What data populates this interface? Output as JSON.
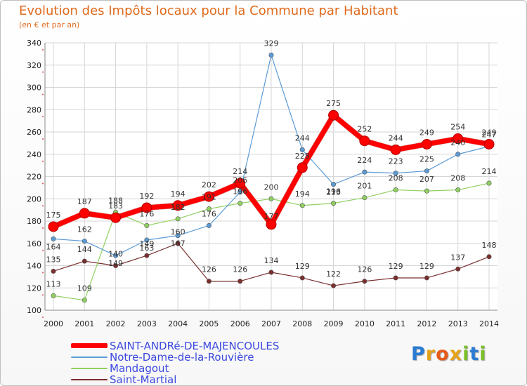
{
  "title": "Evolution des Impôts locaux pour la Commune par Habitant",
  "subtitle": "(en € et par an)",
  "logo": {
    "letters": [
      "P",
      "r",
      "o",
      "x",
      "i",
      "t",
      "i"
    ],
    "colors": [
      "#2b7bd3",
      "#e6a21a",
      "#e65a1a",
      "#e6a21a",
      "#7bbf2a",
      "#2b7bd3",
      "#7bbf2a"
    ]
  },
  "chart_data": {
    "type": "line",
    "title": "Evolution des Impôts locaux pour la Commune par Habitant",
    "ylabel": "(en € et par an)",
    "xlabel": "",
    "categories": [
      "2000",
      "2001",
      "2002",
      "2003",
      "2004",
      "2005",
      "2006",
      "2007",
      "2008",
      "2009",
      "2010",
      "2011",
      "2012",
      "2013",
      "2014"
    ],
    "ylim": [
      100,
      340
    ],
    "yticks": [
      100,
      120,
      140,
      160,
      180,
      200,
      220,
      240,
      260,
      280,
      300,
      320,
      340
    ],
    "grid": true,
    "legend_position": "bottom-left",
    "series": [
      {
        "name": "SAINT-ANDRé-DE-MAJENCOULES",
        "color": "#ff0000",
        "width": 7,
        "marker": 7,
        "values": [
          175,
          187,
          183,
          192,
          194,
          202,
          214,
          177,
          228,
          275,
          252,
          244,
          249,
          254,
          249
        ]
      },
      {
        "name": "Notre-Dame-de-la-Rouvière",
        "color": "#5b9bd5",
        "width": 1.2,
        "marker": 3.2,
        "values": [
          164,
          162,
          149,
          163,
          167,
          176,
          206,
          329,
          244,
          213,
          224,
          223,
          225,
          240,
          247
        ]
      },
      {
        "name": "Mandagout",
        "color": "#90d060",
        "width": 1.2,
        "marker": 3.2,
        "values": [
          113,
          109,
          188,
          176,
          182,
          191,
          196,
          200,
          194,
          196,
          201,
          208,
          207,
          208,
          214
        ]
      },
      {
        "name": "Saint-Martial",
        "color": "#7a2e2e",
        "width": 1.2,
        "marker": 3.2,
        "values": [
          135,
          144,
          140,
          149,
          160,
          126,
          126,
          134,
          129,
          122,
          126,
          129,
          129,
          137,
          148
        ]
      }
    ]
  }
}
